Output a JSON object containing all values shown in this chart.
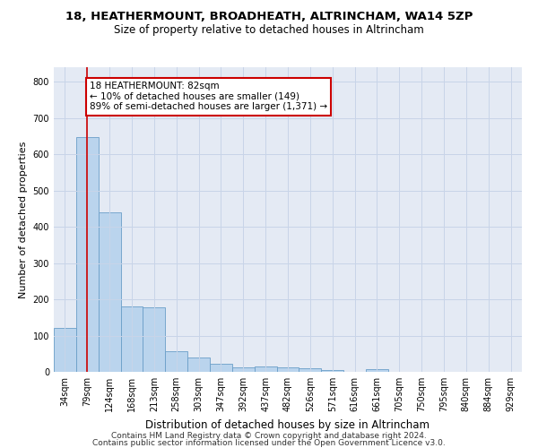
{
  "title1": "18, HEATHERMOUNT, BROADHEATH, ALTRINCHAM, WA14 5ZP",
  "title2": "Size of property relative to detached houses in Altrincham",
  "xlabel": "Distribution of detached houses by size in Altrincham",
  "ylabel": "Number of detached properties",
  "categories": [
    "34sqm",
    "79sqm",
    "124sqm",
    "168sqm",
    "213sqm",
    "258sqm",
    "303sqm",
    "347sqm",
    "392sqm",
    "437sqm",
    "482sqm",
    "526sqm",
    "571sqm",
    "616sqm",
    "661sqm",
    "705sqm",
    "750sqm",
    "795sqm",
    "840sqm",
    "884sqm",
    "929sqm"
  ],
  "values": [
    122,
    648,
    440,
    180,
    178,
    57,
    40,
    22,
    13,
    15,
    12,
    10,
    6,
    0,
    8,
    0,
    0,
    0,
    0,
    0,
    0
  ],
  "bar_color": "#bad4ed",
  "bar_edge_color": "#6a9ec8",
  "vline_x": 1.0,
  "vline_color": "#cc0000",
  "annotation_text": "18 HEATHERMOUNT: 82sqm\n← 10% of detached houses are smaller (149)\n89% of semi-detached houses are larger (1,371) →",
  "annotation_box_color": "#ffffff",
  "annotation_box_edge": "#cc0000",
  "ylim": [
    0,
    840
  ],
  "yticks": [
    0,
    100,
    200,
    300,
    400,
    500,
    600,
    700,
    800
  ],
  "grid_color": "#c8d4e8",
  "bg_color": "#e4eaf4",
  "footer1": "Contains HM Land Registry data © Crown copyright and database right 2024.",
  "footer2": "Contains public sector information licensed under the Open Government Licence v3.0.",
  "title1_fontsize": 9.5,
  "title2_fontsize": 8.5,
  "xlabel_fontsize": 8.5,
  "ylabel_fontsize": 8,
  "tick_fontsize": 7,
  "annotation_fontsize": 7.5,
  "footer_fontsize": 6.5
}
